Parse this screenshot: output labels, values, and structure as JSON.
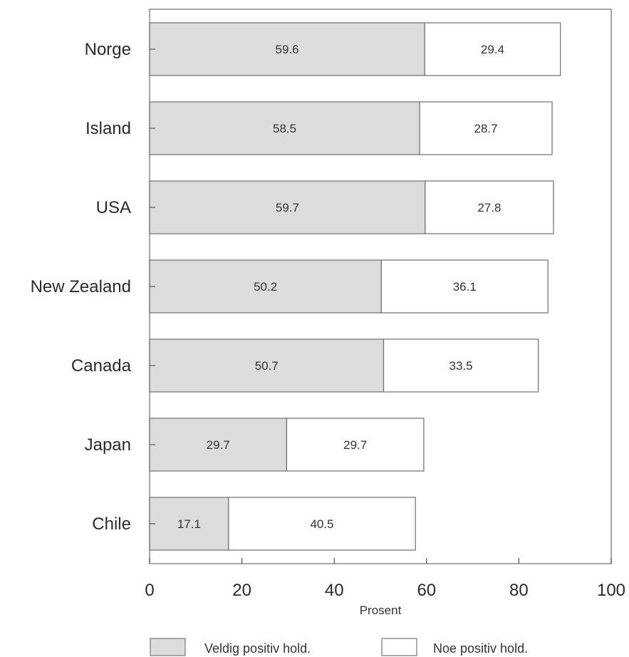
{
  "chart_data": {
    "type": "bar",
    "orientation": "horizontal",
    "stacked": true,
    "categories": [
      "Norge",
      "Island",
      "USA",
      "New Zealand",
      "Canada",
      "Japan",
      "Chile"
    ],
    "series": [
      {
        "name": "Veldig positiv hold.",
        "values": [
          59.6,
          58.5,
          59.7,
          50.2,
          50.7,
          29.7,
          17.1
        ],
        "color": "#dcdcdc"
      },
      {
        "name": "Noe positiv hold.",
        "values": [
          29.4,
          28.7,
          27.8,
          36.1,
          33.5,
          29.7,
          40.5
        ],
        "color": "#ffffff"
      }
    ],
    "xlabel": "Prosent",
    "ylabel": "",
    "title": "",
    "xlim": [
      0,
      100
    ],
    "xticks": [
      0,
      20,
      40,
      60,
      80,
      100
    ],
    "grid": false,
    "legend_position": "bottom"
  }
}
